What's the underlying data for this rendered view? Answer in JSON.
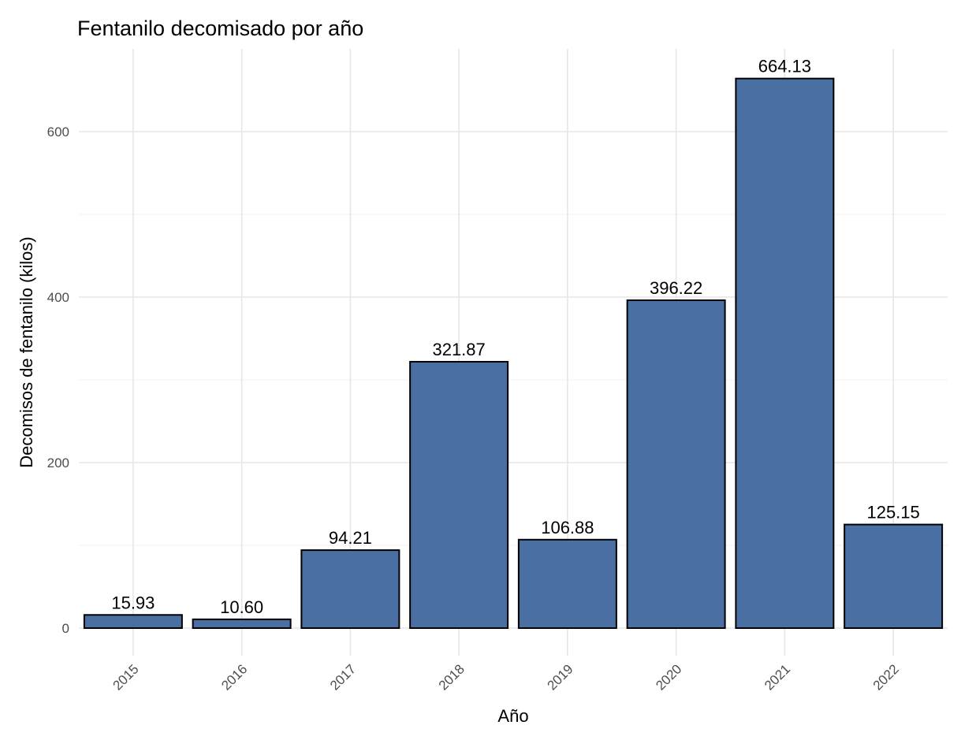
{
  "chart_data": {
    "type": "bar",
    "title": "Fentanilo decomisado por año",
    "xlabel": "Año",
    "ylabel": "Decomisos de fentanilo (kilos)",
    "categories": [
      "2015",
      "2016",
      "2017",
      "2018",
      "2019",
      "2020",
      "2021",
      "2022"
    ],
    "values": [
      15.93,
      10.6,
      94.21,
      321.87,
      106.88,
      396.22,
      664.13,
      125.15
    ],
    "value_labels": [
      "15.93",
      "10.60",
      "94.21",
      "321.87",
      "106.88",
      "396.22",
      "664.13",
      "125.15"
    ],
    "yticks": [
      0,
      200,
      400,
      600
    ],
    "ytick_labels": [
      "0",
      "200",
      "400",
      "600"
    ],
    "ylim": [
      -33.2,
      697.3
    ],
    "grid": true,
    "legend": "none",
    "bar_color": "#4A6FA2",
    "bar_outline": "#000000"
  }
}
